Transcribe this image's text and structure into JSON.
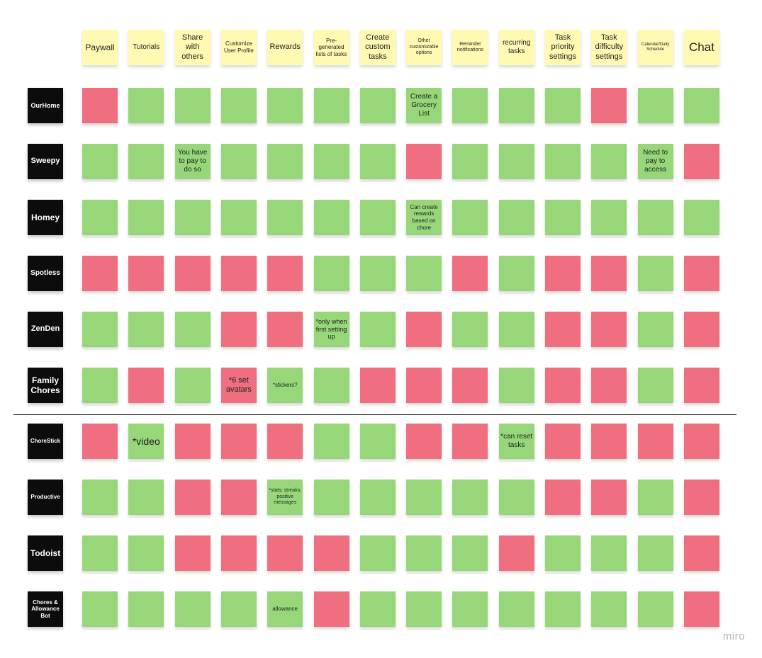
{
  "board": {
    "colors": {
      "header": "#fff9b1",
      "yes": "#97d77a",
      "no": "#ef6e80",
      "label": "#0c0c0c"
    },
    "columns": [
      "Paywall",
      "Tutorials",
      "Share with others",
      "Customize User Profile",
      "Rewards",
      "Pre-generated lists of tasks",
      "Create custom tasks",
      "Other customizable options",
      "Reminder notifications",
      "recurring tasks",
      "Task priority settings",
      "Task difficulty settings",
      "Calendar/Daily Schedule",
      "Chat"
    ],
    "rows": [
      {
        "name": "OurHome",
        "cells": [
          "no",
          "yes",
          "yes",
          "yes",
          "yes",
          "yes",
          "yes",
          "yes",
          "yes",
          "yes",
          "yes",
          "no",
          "yes",
          "yes"
        ],
        "notes": {
          "7": "Create a Grocery List"
        }
      },
      {
        "name": "Sweepy",
        "cells": [
          "yes",
          "yes",
          "yes",
          "yes",
          "yes",
          "yes",
          "yes",
          "no",
          "yes",
          "yes",
          "yes",
          "yes",
          "yes",
          "no"
        ],
        "notes": {
          "2": "You have to pay to do so",
          "12": "Need to pay to access"
        }
      },
      {
        "name": "Homey",
        "cells": [
          "yes",
          "yes",
          "yes",
          "yes",
          "yes",
          "yes",
          "yes",
          "yes",
          "yes",
          "yes",
          "yes",
          "yes",
          "yes",
          "yes"
        ],
        "notes": {
          "7": "Can create rewards based on chore"
        }
      },
      {
        "name": "Spotless",
        "cells": [
          "no",
          "no",
          "no",
          "no",
          "no",
          "yes",
          "yes",
          "yes",
          "no",
          "yes",
          "no",
          "no",
          "yes",
          "no"
        ],
        "notes": {}
      },
      {
        "name": "ZenDen",
        "cells": [
          "yes",
          "yes",
          "yes",
          "no",
          "no",
          "yes",
          "yes",
          "no",
          "yes",
          "yes",
          "no",
          "no",
          "yes",
          "no"
        ],
        "notes": {
          "5": "*only when first setting up"
        }
      },
      {
        "name": "Family Chores",
        "cells": [
          "yes",
          "no",
          "yes",
          "no",
          "yes",
          "yes",
          "no",
          "no",
          "no",
          "yes",
          "no",
          "no",
          "yes",
          "no"
        ],
        "notes": {
          "3": "*6 set avatars",
          "4": "*stickers?"
        }
      },
      {
        "name": "ChoreStick",
        "cells": [
          "no",
          "yes",
          "no",
          "no",
          "no",
          "yes",
          "yes",
          "no",
          "no",
          "yes",
          "no",
          "no",
          "no",
          "no"
        ],
        "notes": {
          "1": "*video",
          "9": "*can reset tasks"
        }
      },
      {
        "name": "Productive",
        "cells": [
          "yes",
          "yes",
          "no",
          "no",
          "yes",
          "yes",
          "yes",
          "yes",
          "yes",
          "yes",
          "no",
          "no",
          "yes",
          "no"
        ],
        "notes": {
          "4": "*stats; streaks; positive messages"
        }
      },
      {
        "name": "Todoist",
        "cells": [
          "yes",
          "yes",
          "no",
          "no",
          "no",
          "no",
          "yes",
          "yes",
          "yes",
          "no",
          "yes",
          "yes",
          "yes",
          "no"
        ],
        "notes": {}
      },
      {
        "name": "Chores & Allowance Bot",
        "cells": [
          "yes",
          "yes",
          "yes",
          "yes",
          "yes",
          "no",
          "yes",
          "yes",
          "yes",
          "yes",
          "yes",
          "yes",
          "yes",
          "no"
        ],
        "notes": {
          "4": "allowance"
        }
      }
    ],
    "logo": "miro"
  }
}
